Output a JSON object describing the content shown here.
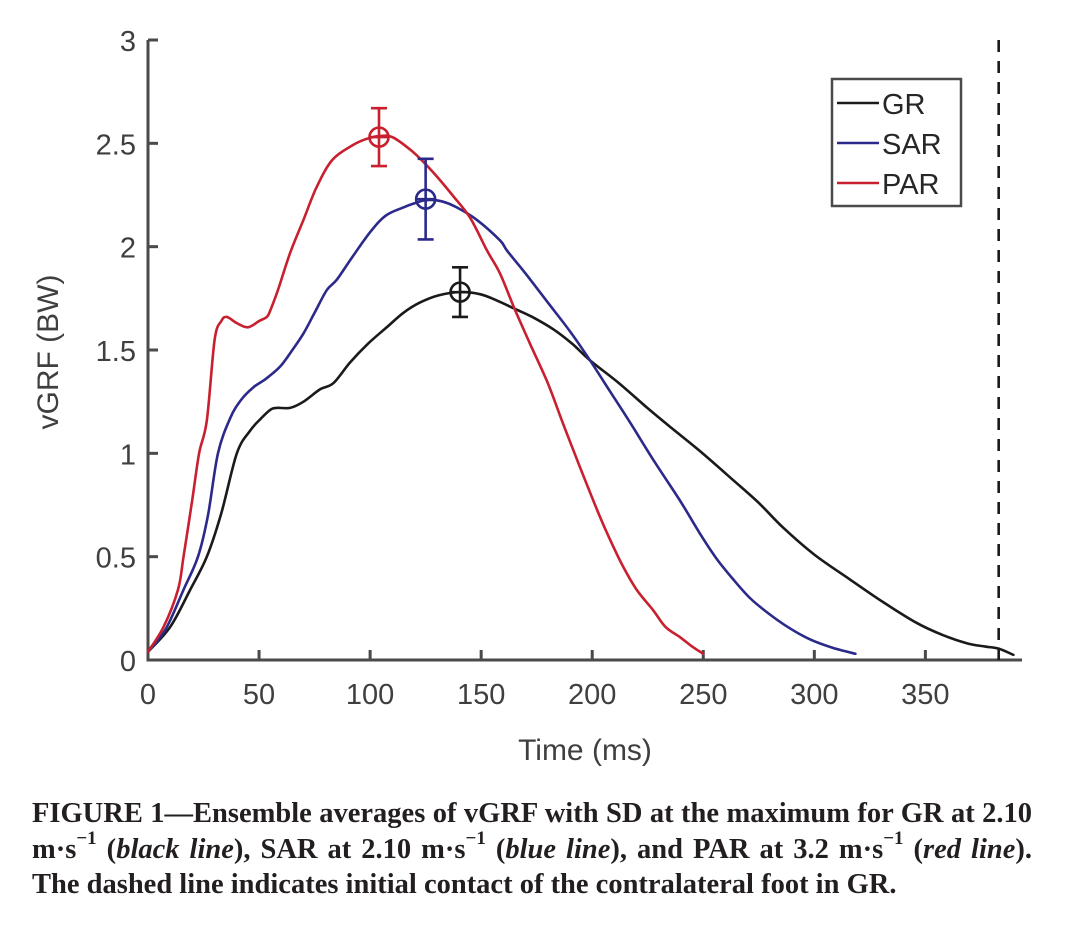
{
  "chart_data": {
    "type": "line",
    "title": "",
    "xlabel": "Time (ms)",
    "ylabel": "vGRF (BW)",
    "xlim": [
      0,
      393.5
    ],
    "ylim": [
      0,
      3
    ],
    "xticks": [
      0,
      50,
      100,
      150,
      200,
      250,
      300,
      350
    ],
    "xtick_labels": [
      "0",
      "50",
      "100",
      "150",
      "200",
      "250",
      "300",
      "350"
    ],
    "yticks": [
      0,
      0.5,
      1,
      1.5,
      2,
      2.5,
      3
    ],
    "ytick_labels": [
      "0",
      "0.5",
      "1",
      "1.5",
      "2",
      "2.5",
      "3"
    ],
    "grid": false,
    "legend": {
      "placement": "top-right",
      "entries": [
        "GR",
        "SAR",
        "PAR"
      ]
    },
    "series": [
      {
        "name": "GR",
        "color": "#1a1a1a",
        "x": [
          0,
          10,
          19,
          26.5,
          33,
          40,
          46,
          51,
          55,
          58,
          64,
          70,
          77.5,
          83.5,
          91,
          99,
          107.5,
          115,
          122.5,
          131,
          140.5,
          149.5,
          157,
          165,
          173,
          182.5,
          191,
          199,
          212,
          224.8,
          236,
          248.6,
          263.5,
          275,
          286,
          300,
          316,
          331,
          346,
          358,
          369,
          377,
          383,
          389.6
        ],
        "y": [
          0.04,
          0.16,
          0.34,
          0.5,
          0.71,
          1.0,
          1.11,
          1.17,
          1.21,
          1.22,
          1.22,
          1.25,
          1.31,
          1.34,
          1.44,
          1.53,
          1.61,
          1.68,
          1.73,
          1.765,
          1.78,
          1.77,
          1.74,
          1.7,
          1.66,
          1.6,
          1.53,
          1.45,
          1.34,
          1.22,
          1.12,
          1.01,
          0.87,
          0.76,
          0.64,
          0.51,
          0.39,
          0.28,
          0.18,
          0.12,
          0.08,
          0.065,
          0.055,
          0.025
        ],
        "peak": {
          "x": 140.5,
          "y": 1.78,
          "sd": 0.12
        }
      },
      {
        "name": "SAR",
        "color": "#2b2a8a",
        "x": [
          0,
          8,
          16,
          22.5,
          27,
          31.5,
          37,
          42,
          47.5,
          53,
          59.5,
          65,
          70,
          75,
          80.5,
          85,
          92,
          100,
          107,
          115,
          120,
          125,
          132,
          139,
          148,
          158.5,
          161.7,
          170,
          180,
          190,
          199,
          208,
          217,
          228,
          239.6,
          248.6,
          256,
          263.5,
          271,
          278.8,
          288,
          298,
          308,
          318.5
        ],
        "y": [
          0.04,
          0.15,
          0.34,
          0.5,
          0.7,
          1.0,
          1.17,
          1.26,
          1.32,
          1.36,
          1.42,
          1.5,
          1.58,
          1.68,
          1.79,
          1.84,
          1.95,
          2.07,
          2.15,
          2.19,
          2.21,
          2.225,
          2.22,
          2.19,
          2.13,
          2.03,
          1.98,
          1.87,
          1.73,
          1.59,
          1.45,
          1.3,
          1.15,
          0.96,
          0.77,
          0.61,
          0.49,
          0.39,
          0.3,
          0.23,
          0.16,
          0.1,
          0.06,
          0.03
        ],
        "peak": {
          "x": 125,
          "y": 2.23,
          "sd": 0.195
        }
      },
      {
        "name": "PAR",
        "color": "#c8202f",
        "x": [
          0,
          7,
          13.5,
          16,
          20,
          23,
          26.5,
          30,
          33,
          35.5,
          40,
          45,
          50,
          53.5,
          55,
          58.5,
          64,
          70,
          76,
          83,
          92,
          98,
          104,
          110,
          118,
          124,
          130,
          137,
          145,
          152.7,
          158.5,
          165,
          172,
          180,
          187,
          194.6,
          203.6,
          209,
          214,
          220,
          227.5,
          233,
          239.6,
          245,
          250
        ],
        "y": [
          0.04,
          0.16,
          0.34,
          0.5,
          0.78,
          1.0,
          1.16,
          1.55,
          1.64,
          1.66,
          1.63,
          1.61,
          1.64,
          1.66,
          1.69,
          1.79,
          1.97,
          2.13,
          2.29,
          2.42,
          2.49,
          2.52,
          2.535,
          2.53,
          2.47,
          2.41,
          2.34,
          2.25,
          2.14,
          1.98,
          1.87,
          1.7,
          1.53,
          1.34,
          1.14,
          0.93,
          0.69,
          0.56,
          0.45,
          0.34,
          0.24,
          0.16,
          0.11,
          0.065,
          0.03
        ],
        "peak": {
          "x": 104,
          "y": 2.53,
          "sd": 0.14
        }
      }
    ],
    "annotations": [
      {
        "type": "vline",
        "style": "dashed",
        "x": 383,
        "color": "#1a1a1a",
        "meaning": "initial contact of the contralateral foot in GR"
      }
    ]
  },
  "caption": {
    "label": "FIGURE 1",
    "dash": "—",
    "text_1": "Ensemble averages of vGRF with SD at the maximum for GR at 2.10 m·s",
    "exp_1": "−1",
    "text_2": " (",
    "italic_1": "black line",
    "text_3": "), SAR at 2.10 m·s",
    "exp_2": "−1",
    "text_4": " (",
    "italic_2": "blue line",
    "text_5": "), and PAR at 3.2 m·s",
    "exp_3": "−1",
    "text_6": " (",
    "italic_3": "red line",
    "text_7": "). The dashed line indicates initial contact of the con­tralateral foot in GR."
  }
}
